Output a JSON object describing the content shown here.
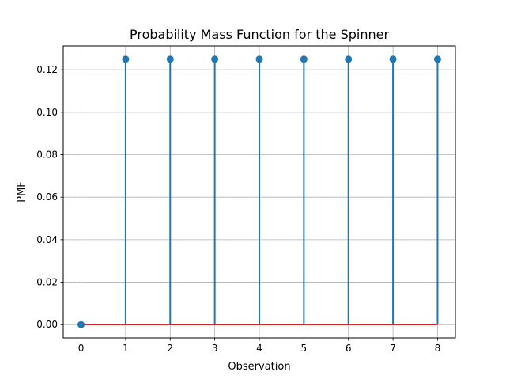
{
  "chart_data": {
    "type": "stem",
    "title": "Probability Mass Function for the Spinner",
    "xlabel": "Observation",
    "ylabel": "PMF",
    "x": [
      0,
      1,
      2,
      3,
      4,
      5,
      6,
      7,
      8
    ],
    "y": [
      0,
      0.125,
      0.125,
      0.125,
      0.125,
      0.125,
      0.125,
      0.125,
      0.125
    ],
    "xlim": [
      -0.4,
      8.4
    ],
    "ylim": [
      -0.00625,
      0.13125
    ],
    "xticks": [
      0,
      1,
      2,
      3,
      4,
      5,
      6,
      7,
      8
    ],
    "yticks": [
      0,
      0.02,
      0.04,
      0.06,
      0.08,
      0.1,
      0.12
    ],
    "ytick_labels": [
      "0.00",
      "0.02",
      "0.04",
      "0.06",
      "0.08",
      "0.10",
      "0.12"
    ],
    "grid": true,
    "colors": {
      "stem": "#1f77b4",
      "baseline": "#d62728",
      "grid": "#b0b0b0"
    }
  }
}
